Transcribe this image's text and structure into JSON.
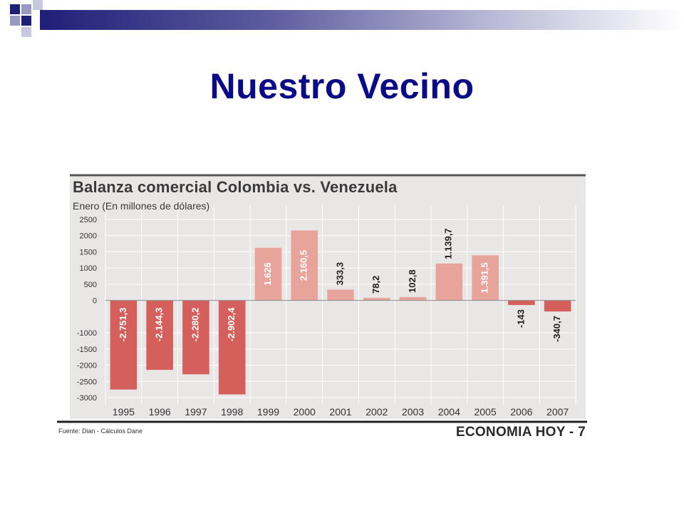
{
  "slide": {
    "title": "Nuestro Vecino"
  },
  "theme": {
    "title_color": "#0b0b88",
    "deco_dark": "#1f1f78",
    "deco_light": "#9999c4"
  },
  "chart_data": {
    "type": "bar",
    "title": "Balanza comercial Colombia vs. Venezuela",
    "subtitle": "Enero (En millones de dólares)",
    "categories": [
      "1995",
      "1996",
      "1997",
      "1998",
      "1999",
      "2000",
      "2001",
      "2002",
      "2003",
      "2004",
      "2005",
      "2006",
      "2007"
    ],
    "values": [
      -2751.3,
      -2144.3,
      -2280.2,
      -2902.4,
      1626,
      2160.5,
      333.3,
      78.2,
      102.8,
      1139.7,
      1391.5,
      -143,
      -340.7
    ],
    "value_labels": [
      "-2.751,3",
      "-2.144,3",
      "-2.280,2",
      "-2.902,4",
      "1.626",
      "2.160,5",
      "333,3",
      "78,2",
      "102,8",
      "1.139,7",
      "1.391,5",
      "-143",
      "-340,7"
    ],
    "ylim": [
      -3000,
      2500
    ],
    "yticks": [
      2500,
      2000,
      1500,
      1000,
      500,
      0,
      -1000,
      -1500,
      -2000,
      -2500,
      -3000
    ],
    "xlabel": "",
    "ylabel": "",
    "grid": true,
    "colors": {
      "negative": "#d45f5b",
      "positive": "#e8a39b",
      "background": "#e9e6e6",
      "grid": "#ffffff",
      "zero_line": "#888888"
    },
    "source": "Fuente: Dian - Cálculos Dane",
    "publisher": "ECONOMIA HOY - 7"
  }
}
